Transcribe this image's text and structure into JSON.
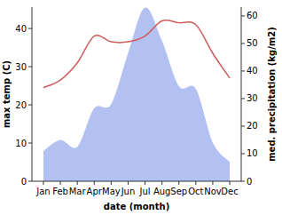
{
  "chart_data": {
    "type": "line",
    "x_label": "date (month)",
    "y_label": "max temp (C)",
    "y2_label": "med. precipitation (kg/m2)",
    "categories": [
      "Jan",
      "Feb",
      "Mar",
      "Apr",
      "May",
      "Jun",
      "Jul",
      "Aug",
      "Sep",
      "Oct",
      "Nov",
      "Dec"
    ],
    "series": [
      {
        "type": "area",
        "axis": "y2",
        "color": "#b3c0f2",
        "values": [
          11,
          15,
          12.5,
          26.5,
          28,
          46.5,
          63,
          51,
          34.5,
          33.5,
          14,
          7
        ]
      },
      {
        "type": "line",
        "color": "#cd5c5c",
        "values": [
          24.5,
          26.5,
          31,
          38,
          36.5,
          36.5,
          38,
          42,
          41.5,
          41,
          33.5,
          27
        ]
      }
    ],
    "ylim": [
      0,
      45.6
    ],
    "yticks": [
      0,
      10,
      20,
      30,
      40
    ],
    "y2lim": [
      0,
      63.2
    ],
    "y2ticks": [
      0,
      10,
      20,
      30,
      40,
      50,
      60
    ]
  }
}
